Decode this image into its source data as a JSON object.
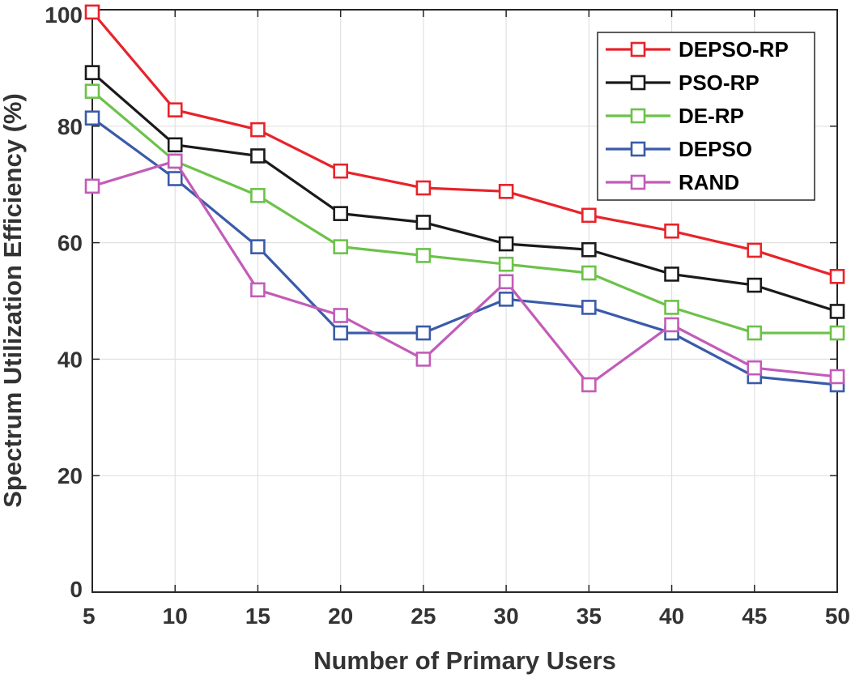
{
  "chart_data": {
    "type": "line",
    "title": "",
    "xlabel": "Number of Primary Users",
    "ylabel": "Spectrum Utilization Efficiency (%)",
    "x": [
      5,
      10,
      15,
      20,
      25,
      30,
      35,
      40,
      45,
      50
    ],
    "xlim": [
      5,
      50
    ],
    "ylim": [
      0,
      100
    ],
    "xticks": [
      5,
      10,
      15,
      20,
      25,
      30,
      35,
      40,
      45,
      50
    ],
    "yticks": [
      0,
      20,
      40,
      60,
      80,
      100
    ],
    "grid": true,
    "legend_position": "top-right",
    "marker": "square",
    "series": [
      {
        "name": "DEPSO-RP",
        "color": "#e8232a",
        "values": [
          99.6,
          82.8,
          79.4,
          72.3,
          69.4,
          68.8,
          64.7,
          62.0,
          58.7,
          54.2
        ]
      },
      {
        "name": "PSO-RP",
        "color": "#1a1a1a",
        "values": [
          89.2,
          76.8,
          74.9,
          65.0,
          63.5,
          59.8,
          58.8,
          54.6,
          52.7,
          48.2
        ]
      },
      {
        "name": "DE-RP",
        "color": "#6cc24a",
        "values": [
          86.0,
          74.0,
          68.1,
          59.3,
          57.8,
          56.3,
          54.8,
          48.9,
          44.5,
          44.5
        ]
      },
      {
        "name": "DEPSO",
        "color": "#3a5ba9",
        "values": [
          81.4,
          71.0,
          59.3,
          44.5,
          44.5,
          50.3,
          48.9,
          44.5,
          37.0,
          35.6
        ]
      },
      {
        "name": "RAND",
        "color": "#c25cb8",
        "values": [
          69.7,
          74.0,
          51.9,
          47.5,
          40.0,
          53.3,
          35.6,
          45.9,
          38.5,
          37.0
        ]
      }
    ]
  }
}
